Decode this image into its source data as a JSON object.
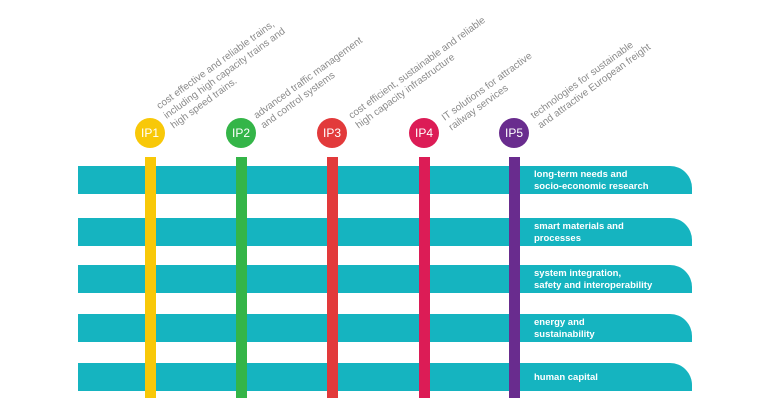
{
  "innovation_programmes": [
    {
      "badge": "IP1",
      "color": "#f8c808",
      "description": [
        "cost effective and reliable trains,",
        "including high capacity trains and",
        "high speed trains."
      ]
    },
    {
      "badge": "IP2",
      "color": "#34b548",
      "description": [
        "advanced traffic management",
        "and control systems"
      ]
    },
    {
      "badge": "IP3",
      "color": "#e23a3b",
      "description": [
        "cost efficient, sustainable and reliable",
        "high capacity infrastructure"
      ]
    },
    {
      "badge": "IP4",
      "color": "#dc1c56",
      "description": [
        "IT solutions for attractive",
        "railway services"
      ]
    },
    {
      "badge": "IP5",
      "color": "#692c8e",
      "description": [
        "technologies for sustainable",
        "and attractive European freight"
      ]
    }
  ],
  "cross_cutting_themes": [
    [
      "long-term needs and",
      "socio-economic research"
    ],
    [
      "smart materials and",
      "processes"
    ],
    [
      "system integration,",
      "safety and interoperability"
    ],
    [
      "energy and",
      "sustainability"
    ],
    [
      "human capital"
    ]
  ],
  "colors": {
    "band": "#15b4c0",
    "description_text": "#8a8a8a"
  }
}
